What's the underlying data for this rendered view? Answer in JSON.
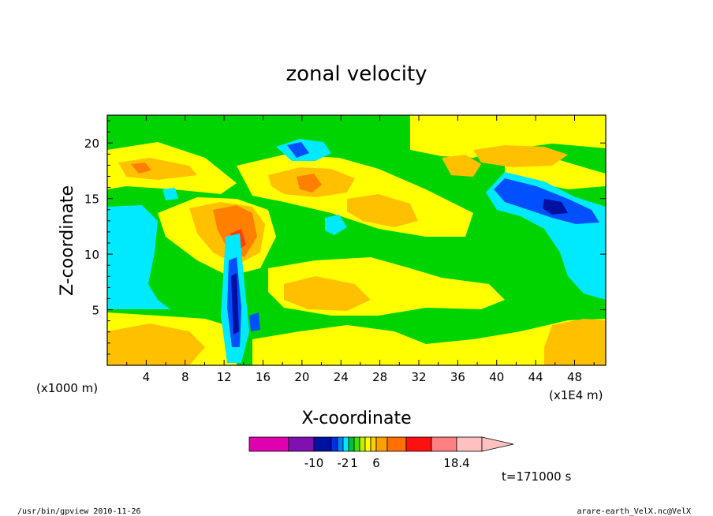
{
  "chart_data": {
    "type": "heatmap",
    "title": "zonal velocity",
    "xlabel": "X-coordinate",
    "ylabel": "Z-coordinate",
    "x_unit_left": "(x1000 m)",
    "x_unit_right": "(x1E4 m)",
    "x_ticks": [
      "4",
      "8",
      "12",
      "16",
      "20",
      "24",
      "28",
      "32",
      "36",
      "40",
      "44",
      "48"
    ],
    "y_ticks": [
      "5",
      "10",
      "15",
      "20"
    ],
    "xlim": [
      0,
      51.2
    ],
    "ylim": [
      0,
      22.5
    ],
    "colorbar": {
      "labels": [
        {
          "text": "-10",
          "value": -10
        },
        {
          "text": "-2",
          "value": -2
        },
        {
          "text": "1",
          "value": 1
        },
        {
          "text": "6",
          "value": 6
        },
        {
          "text": "18.4",
          "value": 18.4
        }
      ],
      "colors": [
        "#e000b0",
        "#8010b0",
        "#0010a0",
        "#0030e0",
        "#0080ff",
        "#00e8ff",
        "#00c040",
        "#40e000",
        "#c0f000",
        "#ffff00",
        "#ffd000",
        "#ffa000",
        "#ff7000",
        "#ff1010",
        "#ff8080",
        "#ffc0c0"
      ]
    },
    "field_colors": {
      "strong_neg": "#0010a0",
      "neg": "#0050ff",
      "weak_neg": "#00eaff",
      "near_zero": "#00d400",
      "weak_pos": "#ffff00",
      "pos": "#ffc000",
      "strong_pos": "#ff8000",
      "max_pos": "#ff4000"
    },
    "annotation": "t=171000 s"
  },
  "footer": {
    "left": "/usr/bin/gpview  2010-11-26",
    "right": "arare-earth_VelX.nc@VelX"
  }
}
